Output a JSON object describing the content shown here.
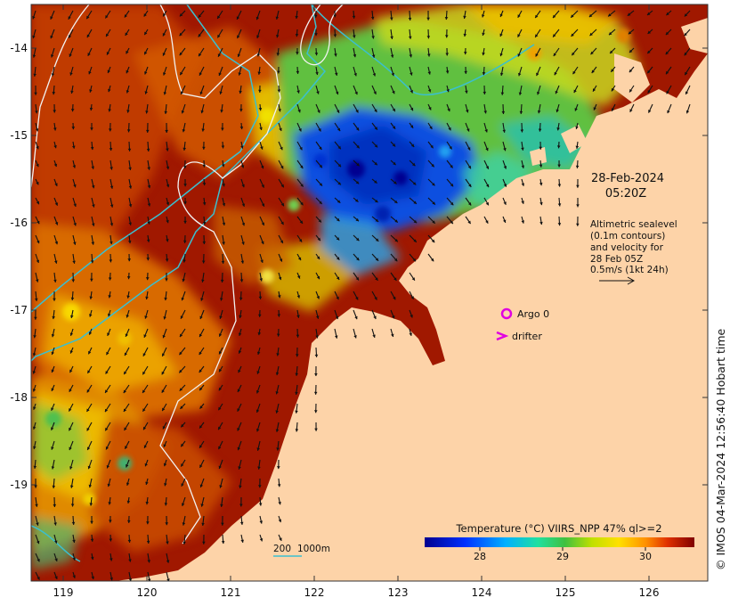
{
  "map": {
    "date_line": "28-Feb-2024",
    "time_line": "05:20Z",
    "info_lines": [
      "Altimetric sealevel",
      "(0.1m contours)",
      "and velocity for",
      "28 Feb 05Z",
      "0.5m/s (1kt 24h)"
    ],
    "legend": {
      "argo_label": "Argo 0",
      "drifter_label": "drifter"
    },
    "depth_legend": {
      "d1": "200",
      "d2": "1000m"
    },
    "colorbar": {
      "title": "Temperature (°C) VIIRS_NPP 47% ql>=2",
      "ticks": [
        "28",
        "29",
        "30"
      ]
    },
    "lon_labels": [
      "119",
      "120",
      "121",
      "122",
      "123",
      "124",
      "125",
      "126"
    ],
    "lat_labels": [
      "-14",
      "-15",
      "-16",
      "-17",
      "-18",
      "-19"
    ],
    "credit": "© IMOS 04-Mar-2024 12:56:40 Hobart time",
    "colors": {
      "land": "#fdd3a8",
      "warm": "#a01800",
      "argo": "#e000e0",
      "isobath": "#3bbfcf",
      "contour": "#f2f2f2"
    }
  }
}
